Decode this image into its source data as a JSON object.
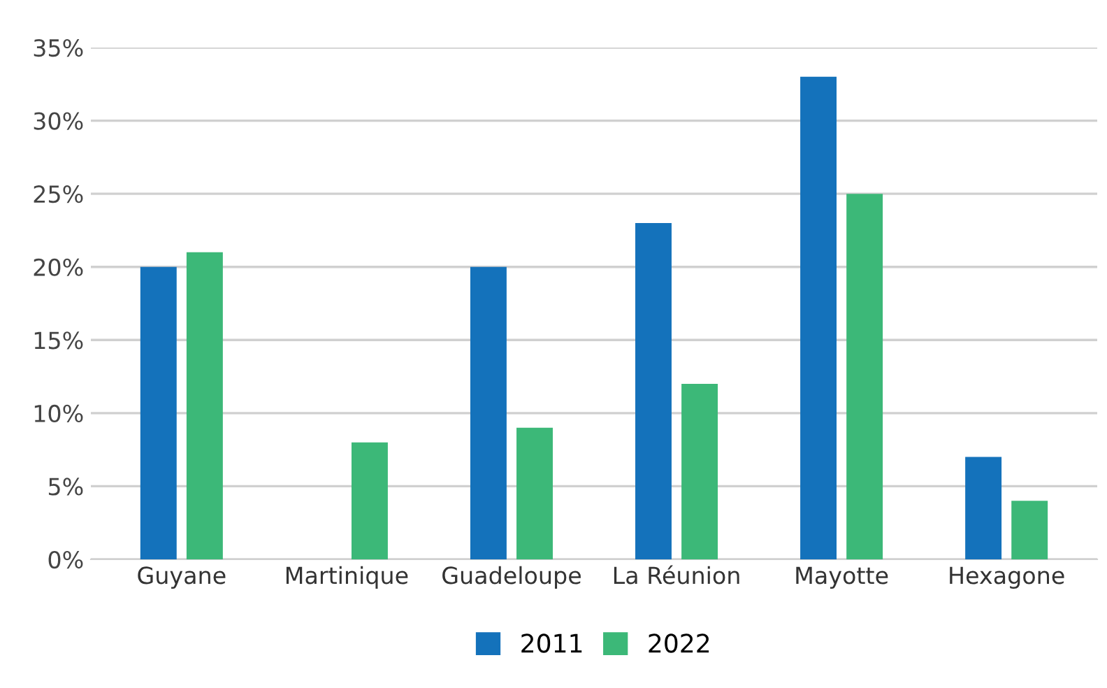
{
  "chart_data": {
    "type": "bar",
    "categories": [
      "Guyane",
      "Martinique",
      "Guadeloupe",
      "La Réunion",
      "Mayotte",
      "Hexagone"
    ],
    "series": [
      {
        "name": "2011",
        "color": "#1472bb",
        "values": [
          20,
          null,
          20,
          23,
          33,
          7
        ]
      },
      {
        "name": "2022",
        "color": "#3cb878",
        "values": [
          21,
          8,
          9,
          12,
          25,
          4
        ]
      }
    ],
    "ylim": [
      0,
      35
    ],
    "yticks": [
      {
        "value": 0,
        "label": "0%"
      },
      {
        "value": 5,
        "label": "5%"
      },
      {
        "value": 10,
        "label": "10%"
      },
      {
        "value": 15,
        "label": "15%"
      },
      {
        "value": 20,
        "label": "20%"
      },
      {
        "value": 25,
        "label": "25%"
      },
      {
        "value": 30,
        "label": "30%"
      },
      {
        "value": 35,
        "label": "35%"
      }
    ],
    "grid": "y",
    "legend": "bottom"
  }
}
